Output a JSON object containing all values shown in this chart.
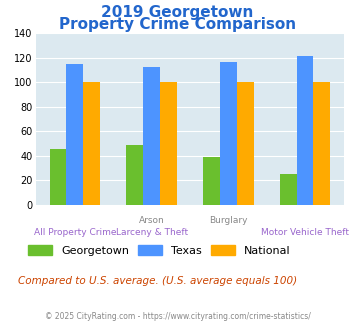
{
  "title_line1": "2019 Georgetown",
  "title_line2": "Property Crime Comparison",
  "georgetown": [
    45,
    49,
    39,
    25
  ],
  "texas": [
    115,
    112,
    116,
    121
  ],
  "national": [
    100,
    100,
    100,
    100
  ],
  "georgetown_color": "#6abf2e",
  "texas_color": "#4d94ff",
  "national_color": "#ffaa00",
  "ylim": [
    0,
    140
  ],
  "yticks": [
    0,
    20,
    40,
    60,
    80,
    100,
    120,
    140
  ],
  "plot_bg_color": "#dce9f0",
  "fig_bg_color": "#ffffff",
  "title_color": "#2266cc",
  "xlabel_top_color": "#888888",
  "xlabel_bot_color": "#9966cc",
  "top_labels": {
    "1": "Arson",
    "2": "Burglary"
  },
  "bot_labels": {
    "0": "All Property Crime",
    "1": "Larceny & Theft",
    "3": "Motor Vehicle Theft"
  },
  "note_text": "Compared to U.S. average. (U.S. average equals 100)",
  "note_color": "#cc4400",
  "footer_text": "© 2025 CityRating.com - https://www.cityrating.com/crime-statistics/",
  "footer_color": "#888888",
  "legend_labels": [
    "Georgetown",
    "Texas",
    "National"
  ]
}
